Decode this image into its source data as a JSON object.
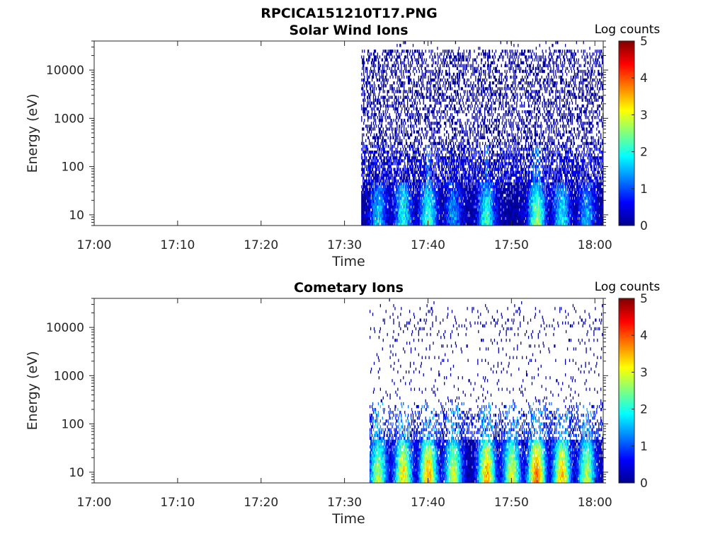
{
  "figure": {
    "title": "RPCICA151210T17.PNG"
  },
  "colors": {
    "colormap": [
      "#00008f",
      "#0000ff",
      "#0080ff",
      "#00ffff",
      "#80ff80",
      "#ffff00",
      "#ff8000",
      "#ff0000",
      "#800000"
    ],
    "axis": "#262626",
    "background": "#ffffff"
  },
  "chart_data": [
    {
      "type": "heatmap",
      "title": "Solar Wind Ions",
      "xlabel": "Time",
      "ylabel": "Energy (eV)",
      "xticks": [
        "17:00",
        "17:10",
        "17:20",
        "17:30",
        "17:40",
        "17:50",
        "18:00"
      ],
      "xlim": [
        "17:00",
        "18:01"
      ],
      "yscale": "log",
      "ylim": [
        6,
        40000
      ],
      "yticks": [
        10,
        100,
        1000,
        10000
      ],
      "ytick_labels": [
        "10",
        "100",
        "1000",
        "10000"
      ],
      "colorbar": {
        "label": "Log counts",
        "range": [
          0,
          5
        ],
        "ticks": [
          "0",
          "1",
          "2",
          "3",
          "4",
          "5"
        ]
      },
      "data_start": "17:32",
      "data_end": "18:01",
      "high_energy_density": 0.32,
      "peaks_log_counts": [
        {
          "time": "17:34",
          "level": 1.6
        },
        {
          "time": "17:37",
          "level": 2.0
        },
        {
          "time": "17:40",
          "level": 2.2
        },
        {
          "time": "17:43",
          "level": 1.4
        },
        {
          "time": "17:47",
          "level": 2.1
        },
        {
          "time": "17:53",
          "level": 2.6
        },
        {
          "time": "17:56",
          "level": 1.9
        },
        {
          "time": "17:59",
          "level": 1.5
        }
      ]
    },
    {
      "type": "heatmap",
      "title": "Cometary Ions",
      "xlabel": "Time",
      "ylabel": "Energy (eV)",
      "xticks": [
        "17:00",
        "17:10",
        "17:20",
        "17:30",
        "17:40",
        "17:50",
        "18:00"
      ],
      "xlim": [
        "17:00",
        "18:01"
      ],
      "yscale": "log",
      "ylim": [
        6,
        40000
      ],
      "yticks": [
        10,
        100,
        1000,
        10000
      ],
      "ytick_labels": [
        "10",
        "100",
        "1000",
        "10000"
      ],
      "colorbar": {
        "label": "Log counts",
        "range": [
          0,
          5
        ],
        "ticks": [
          "0",
          "1",
          "2",
          "3",
          "4",
          "5"
        ]
      },
      "data_start": "17:33",
      "data_end": "18:01",
      "high_energy_density": 0.045,
      "peaks_log_counts": [
        {
          "time": "17:34",
          "level": 2.8
        },
        {
          "time": "17:37",
          "level": 3.3
        },
        {
          "time": "17:40",
          "level": 3.6
        },
        {
          "time": "17:43",
          "level": 3.0
        },
        {
          "time": "17:47",
          "level": 3.6
        },
        {
          "time": "17:50",
          "level": 3.0
        },
        {
          "time": "17:53",
          "level": 4.0
        },
        {
          "time": "17:56",
          "level": 3.5
        },
        {
          "time": "17:59",
          "level": 2.8
        }
      ]
    }
  ]
}
